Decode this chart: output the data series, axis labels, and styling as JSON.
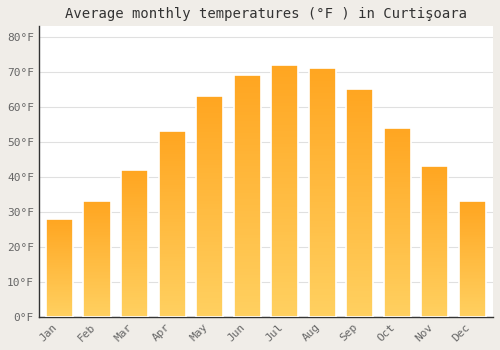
{
  "title": "Average monthly temperatures (°F ) in Curtişoara",
  "months": [
    "Jan",
    "Feb",
    "Mar",
    "Apr",
    "May",
    "Jun",
    "Jul",
    "Aug",
    "Sep",
    "Oct",
    "Nov",
    "Dec"
  ],
  "values": [
    28,
    33,
    42,
    53,
    63,
    69,
    72,
    71,
    65,
    54,
    43,
    33
  ],
  "bar_color_top": "#FFA520",
  "bar_color_bottom": "#FFD060",
  "background_color": "#ffffff",
  "outer_background": "#f0ede8",
  "grid_color": "#e0e0e0",
  "bar_edge_color": "#ffffff",
  "ylim": [
    0,
    83
  ],
  "yticks": [
    0,
    10,
    20,
    30,
    40,
    50,
    60,
    70,
    80
  ],
  "ytick_labels": [
    "0°F",
    "10°F",
    "20°F",
    "30°F",
    "40°F",
    "50°F",
    "60°F",
    "70°F",
    "80°F"
  ],
  "title_fontsize": 10,
  "tick_fontsize": 8,
  "bar_width": 0.72
}
